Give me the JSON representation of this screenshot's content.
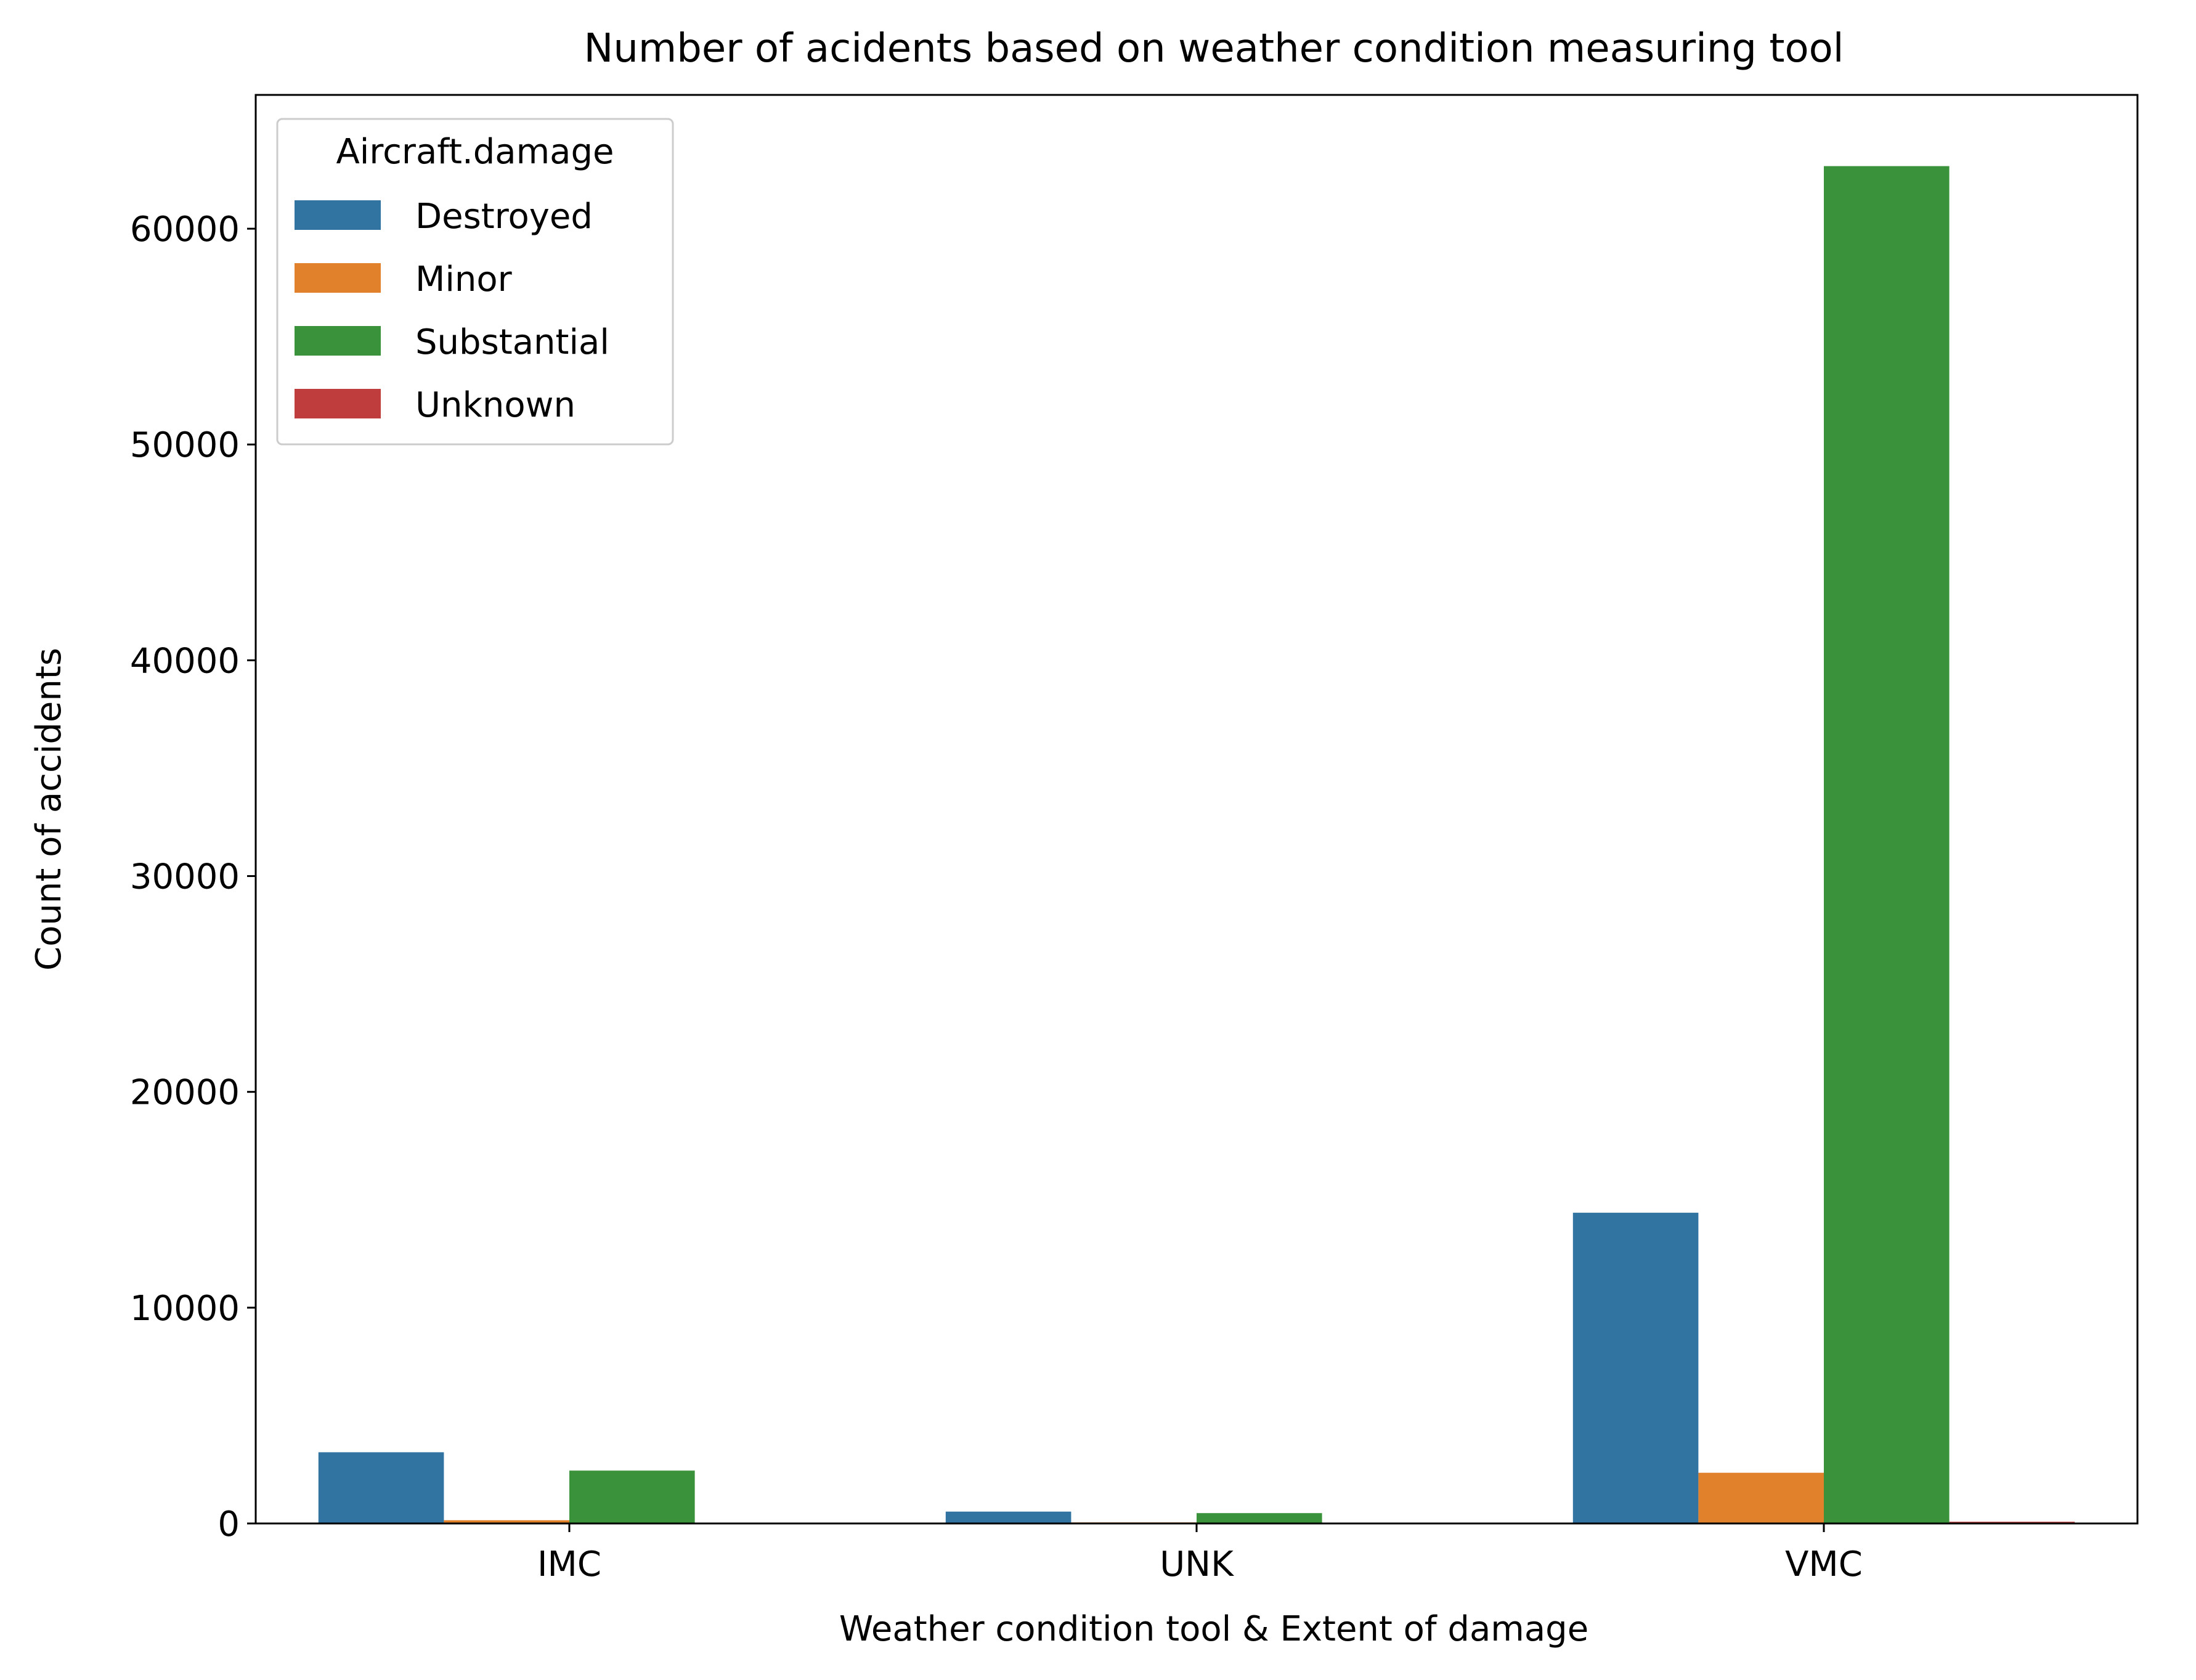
{
  "chart_data": {
    "type": "bar",
    "title": "Number of acidents based on weather condition measuring tool",
    "xlabel": "Weather condition tool & Extent of damage",
    "ylabel": "Count of accidents",
    "categories": [
      "IMC",
      "UNK",
      "VMC"
    ],
    "ylim": [
      0,
      66200
    ],
    "yticks": [
      0,
      10000,
      20000,
      30000,
      40000,
      50000,
      60000
    ],
    "grid": false,
    "legend": {
      "title": "Aircraft.damage",
      "placement": "top-left"
    },
    "series": [
      {
        "name": "Destroyed",
        "color": "#3274a1",
        "values": [
          3300,
          550,
          14400
        ]
      },
      {
        "name": "Minor",
        "color": "#e1812c",
        "values": [
          150,
          50,
          2350
        ]
      },
      {
        "name": "Substantial",
        "color": "#3a923a",
        "values": [
          2450,
          480,
          62900
        ]
      },
      {
        "name": "Unknown",
        "color": "#c03d3e",
        "values": [
          5,
          5,
          80
        ]
      }
    ]
  }
}
